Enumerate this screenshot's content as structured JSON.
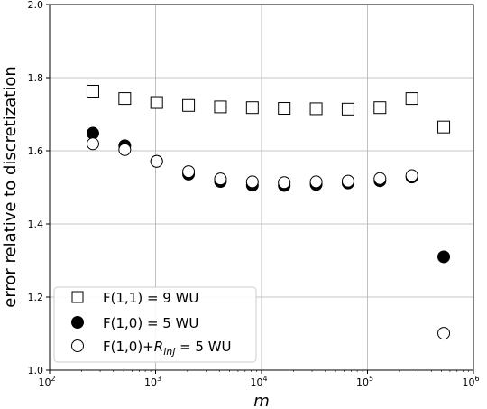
{
  "chart_data": {
    "type": "scatter",
    "xscale": "log",
    "xlim": [
      100,
      1000000
    ],
    "ylim": [
      1.0,
      2.0
    ],
    "grid": true,
    "xlabel": "m",
    "ylabel": "error relative to discretization",
    "xticks": [
      {
        "value": 100,
        "base": "10",
        "exp": "2"
      },
      {
        "value": 1000,
        "base": "10",
        "exp": "3"
      },
      {
        "value": 10000,
        "base": "10",
        "exp": "4"
      },
      {
        "value": 100000,
        "base": "10",
        "exp": "5"
      },
      {
        "value": 1000000,
        "base": "10",
        "exp": "6"
      }
    ],
    "yticks": [
      {
        "value": 1.0,
        "label": "1.0"
      },
      {
        "value": 1.2,
        "label": "1.2"
      },
      {
        "value": 1.4,
        "label": "1.4"
      },
      {
        "value": 1.6,
        "label": "1.6"
      },
      {
        "value": 1.8,
        "label": "1.8"
      },
      {
        "value": 2.0,
        "label": "2.0"
      }
    ],
    "legend_position": "bottom-left",
    "series": [
      {
        "name": "F(1,1) = 9 WU",
        "marker": "square-open",
        "x": [
          256,
          512,
          1024,
          2048,
          4096,
          8192,
          16384,
          32768,
          65536,
          131072,
          262144,
          524288
        ],
        "y": [
          1.763,
          1.743,
          1.732,
          1.724,
          1.72,
          1.718,
          1.716,
          1.715,
          1.714,
          1.718,
          1.743,
          1.665
        ]
      },
      {
        "name": "F(1,0) = 5 WU",
        "marker": "circle-filled",
        "x": [
          256,
          512,
          1024,
          2048,
          4096,
          8192,
          16384,
          32768,
          65536,
          131072,
          262144,
          524288
        ],
        "y": [
          1.648,
          1.614,
          1.571,
          1.536,
          1.516,
          1.506,
          1.505,
          1.508,
          1.512,
          1.518,
          1.528,
          1.31
        ]
      },
      {
        "name_prefix": "F(1,0)+",
        "name_math_base": "R",
        "name_math_sub": "inj",
        "name_suffix": " = 5 WU",
        "marker": "circle-open",
        "x": [
          256,
          512,
          1024,
          2048,
          4096,
          8192,
          16384,
          32768,
          65536,
          131072,
          262144,
          524288
        ],
        "y": [
          1.619,
          1.603,
          1.571,
          1.543,
          1.523,
          1.515,
          1.513,
          1.515,
          1.517,
          1.524,
          1.532,
          1.101
        ]
      }
    ]
  },
  "colors": {
    "marker_edge": "#000000",
    "marker_fill_filled": "#000000",
    "marker_fill_open": "#ffffff",
    "grid": "#b0b0b0",
    "axes": "#000000",
    "legend_border": "#cccccc"
  }
}
